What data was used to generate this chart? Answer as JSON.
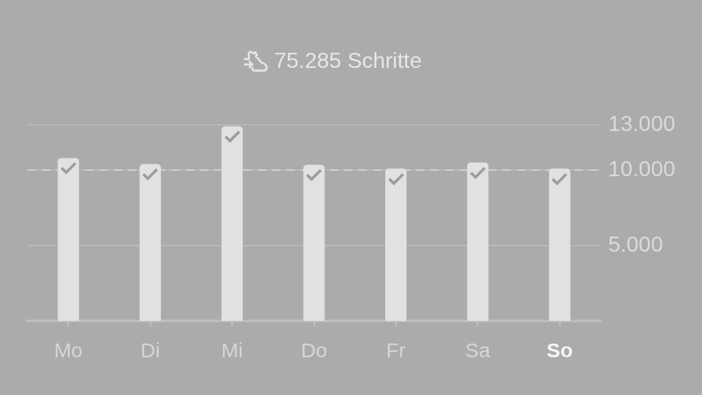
{
  "chart_data": {
    "type": "bar",
    "title": "75.285 Schritte",
    "categories": [
      "Mo",
      "Di",
      "Mi",
      "Do",
      "Fr",
      "Sa",
      "So"
    ],
    "values": [
      10800,
      10400,
      12900,
      10350,
      10100,
      10500,
      10100
    ],
    "color": "#e1e1e1",
    "ylim": [
      0,
      13000
    ],
    "yticks": [
      {
        "value": 5000,
        "label": "5.000"
      },
      {
        "value": 10000,
        "label": "10.000"
      },
      {
        "value": 13000,
        "label": "13.000"
      }
    ],
    "grid": "y",
    "ref_lines": [
      {
        "axis": "y",
        "value": 10000,
        "color": "#d4d4d4",
        "line_style": "dashed"
      }
    ]
  }
}
